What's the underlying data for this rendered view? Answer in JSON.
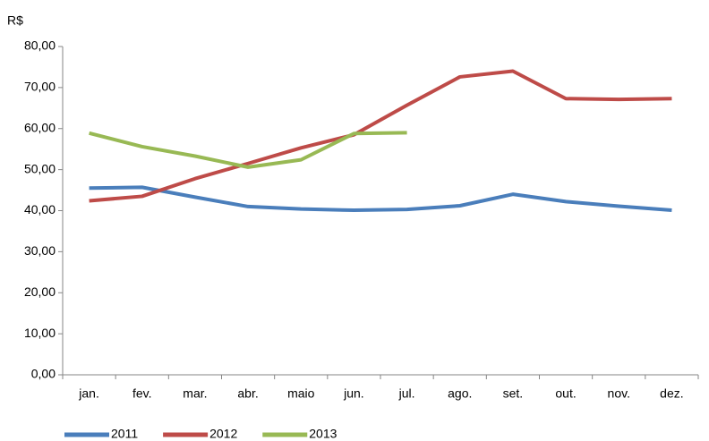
{
  "chart_data": {
    "type": "line",
    "y_label": "R$",
    "categories": [
      "jan.",
      "fev.",
      "mar.",
      "abr.",
      "maio",
      "jun.",
      "jul.",
      "ago.",
      "set.",
      "out.",
      "nov.",
      "dez."
    ],
    "series": [
      {
        "name": "2011",
        "color": "#4a7ebb",
        "values": [
          45.5,
          45.7,
          43.3,
          41.0,
          40.4,
          40.1,
          40.3,
          41.2,
          44.0,
          42.2,
          41.1,
          40.1
        ]
      },
      {
        "name": "2012",
        "color": "#be4b48",
        "values": [
          42.4,
          43.5,
          47.8,
          51.5,
          55.3,
          58.5,
          65.7,
          72.6,
          74.0,
          67.3,
          67.1,
          67.3
        ]
      },
      {
        "name": "2013",
        "color": "#98b954",
        "values": [
          58.9,
          55.6,
          53.3,
          50.6,
          52.4,
          58.8,
          59.0,
          null,
          null,
          null,
          null,
          null
        ]
      }
    ],
    "ylim": [
      0,
      80
    ],
    "yticks": [
      {
        "value": 0,
        "label": "0,00"
      },
      {
        "value": 10,
        "label": "10,00"
      },
      {
        "value": 20,
        "label": "20,00"
      },
      {
        "value": 30,
        "label": "30,00"
      },
      {
        "value": 40,
        "label": "40,00"
      },
      {
        "value": 50,
        "label": "50,00"
      },
      {
        "value": 60,
        "label": "60,00"
      },
      {
        "value": 70,
        "label": "70,00"
      },
      {
        "value": 80,
        "label": "80,00"
      }
    ],
    "grid": false,
    "legend": "bottom-left"
  }
}
